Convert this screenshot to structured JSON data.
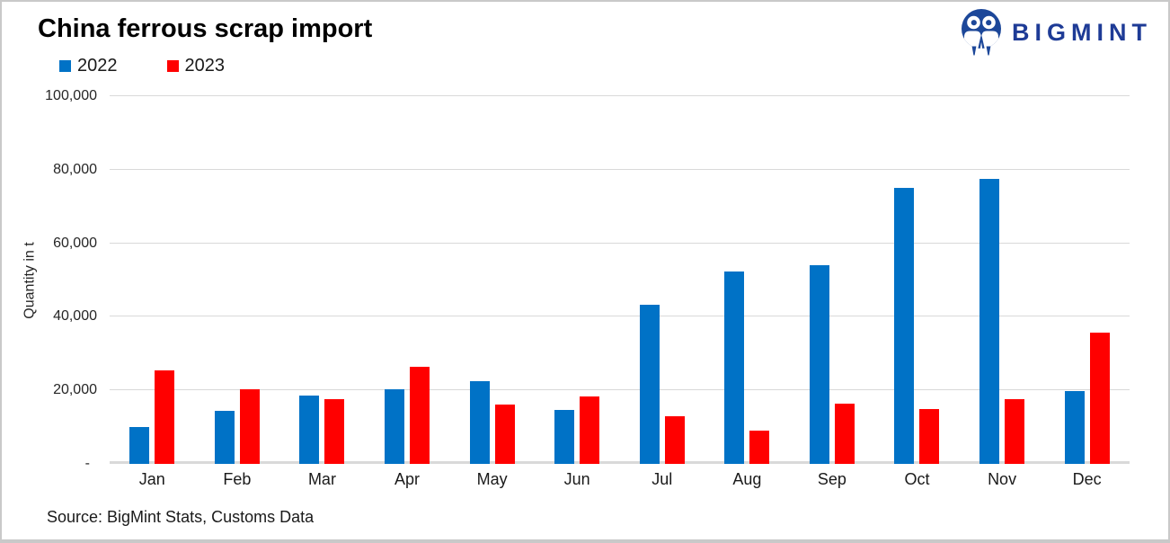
{
  "header": {
    "title": "China ferrous scrap import",
    "logo_text": "BIGMINT"
  },
  "legend": [
    {
      "label": "2022",
      "color": "#0072c6"
    },
    {
      "label": "2023",
      "color": "#ff0000"
    }
  ],
  "footer": {
    "source": "Source: BigMint Stats, Customs Data"
  },
  "colors": {
    "series_2022": "#0072c6",
    "series_2023": "#ff0000",
    "gridline": "#d9d9d9",
    "logo_blue": "#1c4799",
    "logo_text_blue": "#1e3b96"
  },
  "chart_data": {
    "type": "bar",
    "title": "China ferrous scrap import",
    "categories": [
      "Jan",
      "Feb",
      "Mar",
      "Apr",
      "May",
      "Jun",
      "Jul",
      "Aug",
      "Sep",
      "Oct",
      "Nov",
      "Dec"
    ],
    "series": [
      {
        "name": "2022",
        "color": "#0072c6",
        "values": [
          10000,
          14500,
          18700,
          20400,
          22600,
          14600,
          43400,
          52300,
          54000,
          75000,
          77600,
          19700
        ]
      },
      {
        "name": "2023",
        "color": "#ff0000",
        "values": [
          25500,
          20200,
          17600,
          26500,
          16100,
          18300,
          13000,
          9000,
          16300,
          14800,
          17500,
          35600
        ]
      }
    ],
    "xlabel": "",
    "ylabel": "Quantity in t",
    "ylim": [
      0,
      100000
    ],
    "ytick_step": 20000,
    "ytick_labels": [
      "-",
      "20,000",
      "40,000",
      "60,000",
      "80,000",
      "100,000"
    ],
    "grid": true,
    "legend_position": "top-left"
  }
}
